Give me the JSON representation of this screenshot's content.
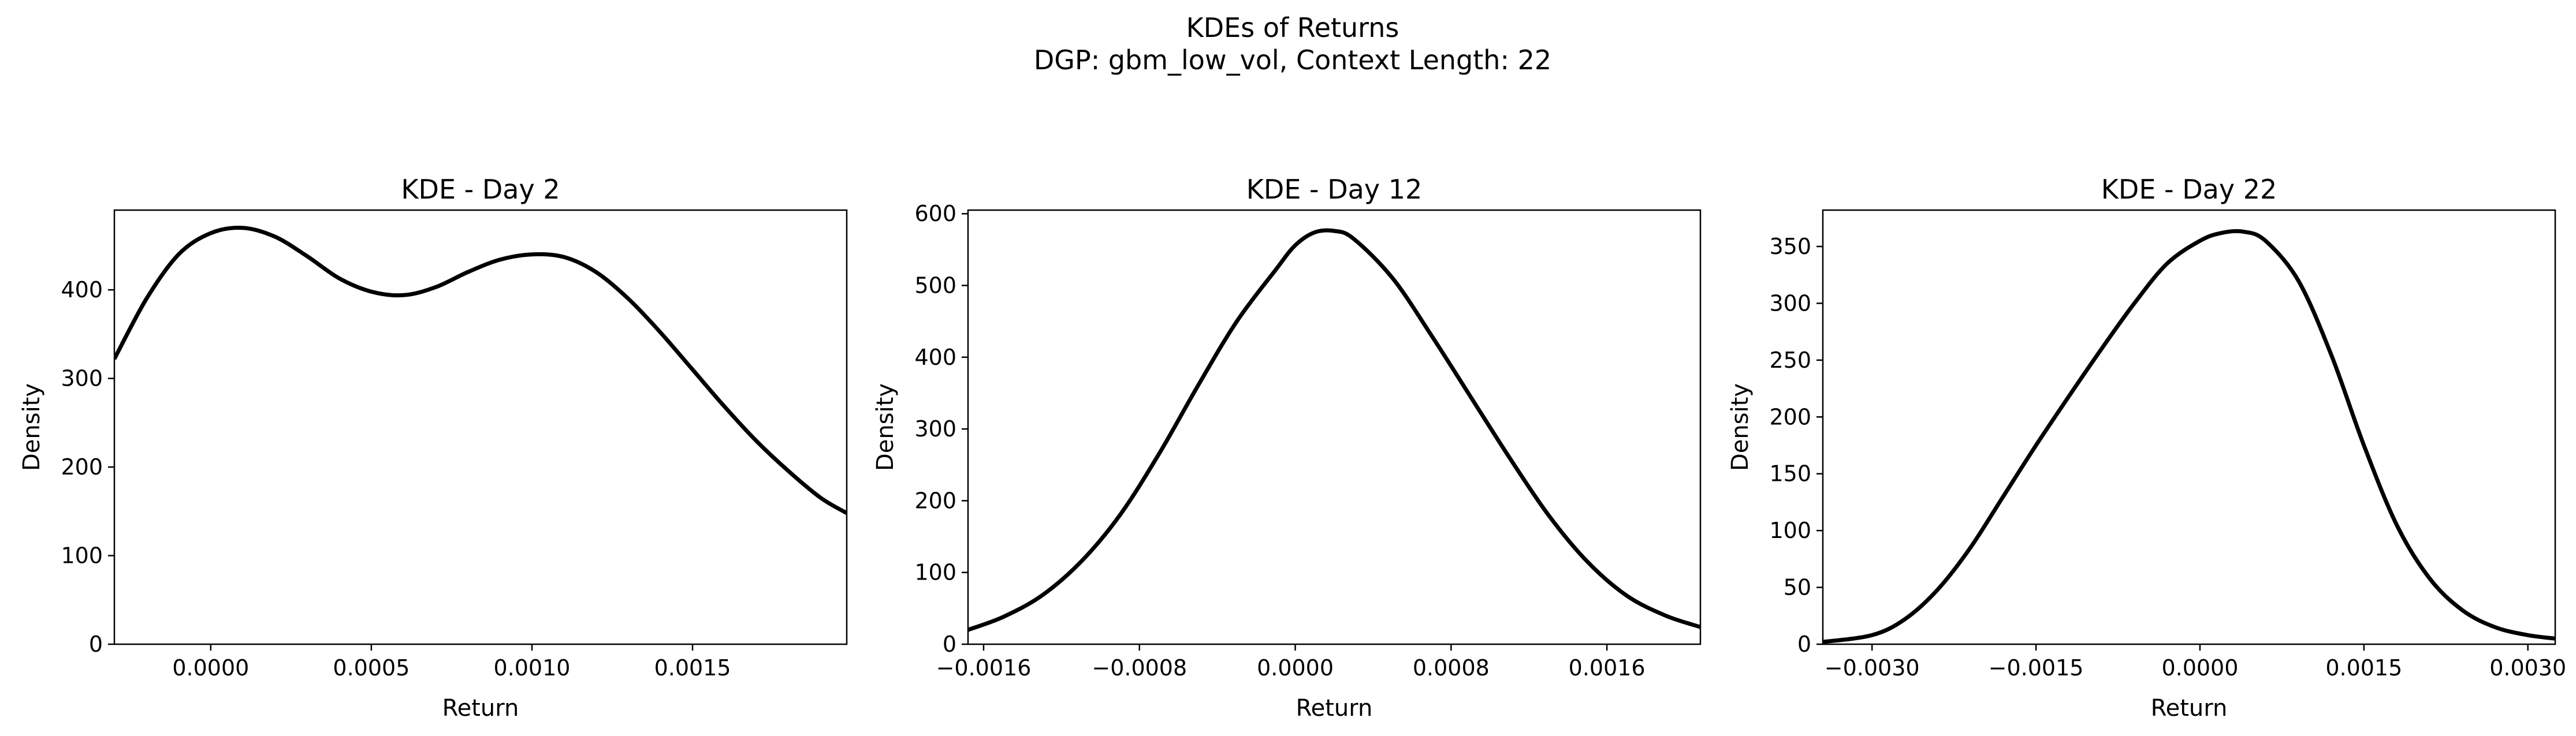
{
  "figure": {
    "title_line1": "KDEs of Returns",
    "title_line2": "DGP: gbm_low_vol, Context Length: 22"
  },
  "chart_data": [
    {
      "type": "line",
      "title": "KDE - Day 2",
      "xlabel": "Return",
      "ylabel": "Density",
      "xlim": [
        -0.0003,
        0.00198
      ],
      "ylim": [
        0,
        490
      ],
      "xticks": [
        0.0,
        0.0005,
        0.001,
        0.0015
      ],
      "xtick_labels": [
        "0.0000",
        "0.0005",
        "0.0010",
        "0.0015"
      ],
      "yticks": [
        0,
        100,
        200,
        300,
        400
      ],
      "ytick_labels": [
        "0",
        "100",
        "200",
        "300",
        "400"
      ],
      "series": [
        {
          "color": "#000000",
          "x": [
            -0.0003,
            -0.0002,
            -0.0001,
            0.0,
            0.0001,
            0.0002,
            0.0003,
            0.0004,
            0.0005,
            0.0006,
            0.0007,
            0.0008,
            0.0009,
            0.001,
            0.0011,
            0.0012,
            0.0013,
            0.0014,
            0.0015,
            0.0016,
            0.0017,
            0.0018,
            0.0019,
            0.00198
          ],
          "y": [
            322,
            390,
            440,
            464,
            470,
            460,
            438,
            413,
            398,
            394,
            403,
            420,
            434,
            440,
            437,
            420,
            390,
            352,
            310,
            268,
            229,
            195,
            165,
            148
          ]
        }
      ]
    },
    {
      "type": "line",
      "title": "KDE - Day 12",
      "xlabel": "Return",
      "ylabel": "Density",
      "xlim": [
        -0.00168,
        0.00208
      ],
      "ylim": [
        0,
        605
      ],
      "xticks": [
        -0.0016,
        -0.0008,
        0.0,
        0.0008,
        0.0016
      ],
      "xtick_labels": [
        "−0.0016",
        "−0.0008",
        "0.0000",
        "0.0008",
        "0.0016"
      ],
      "yticks": [
        0,
        100,
        200,
        300,
        400,
        500,
        600
      ],
      "ytick_labels": [
        "0",
        "100",
        "200",
        "300",
        "400",
        "500",
        "600"
      ],
      "series": [
        {
          "color": "#000000",
          "x": [
            -0.00168,
            -0.0015,
            -0.0013,
            -0.0011,
            -0.0009,
            -0.0007,
            -0.0005,
            -0.0003,
            -0.0001,
            0.0,
            0.0001,
            0.0002,
            0.0003,
            0.0005,
            0.0007,
            0.0009,
            0.0011,
            0.0013,
            0.0015,
            0.0017,
            0.0019,
            0.00208
          ],
          "y": [
            20,
            38,
            68,
            115,
            180,
            265,
            360,
            450,
            522,
            556,
            574,
            576,
            565,
            510,
            430,
            345,
            260,
            180,
            115,
            68,
            40,
            24
          ]
        }
      ]
    },
    {
      "type": "line",
      "title": "KDE - Day 22",
      "xlabel": "Return",
      "ylabel": "Density",
      "xlim": [
        -0.00345,
        0.00325
      ],
      "ylim": [
        0,
        382
      ],
      "xticks": [
        -0.003,
        -0.0015,
        0.0,
        0.0015,
        0.003
      ],
      "xtick_labels": [
        "−0.0030",
        "−0.0015",
        "0.0000",
        "0.0015",
        "0.0030"
      ],
      "yticks": [
        0,
        50,
        100,
        150,
        200,
        250,
        300,
        350
      ],
      "ytick_labels": [
        "0",
        "50",
        "100",
        "150",
        "200",
        "250",
        "300",
        "350"
      ],
      "series": [
        {
          "color": "#000000",
          "x": [
            -0.00345,
            -0.003,
            -0.0027,
            -0.0024,
            -0.0021,
            -0.0018,
            -0.0015,
            -0.0012,
            -0.0009,
            -0.0006,
            -0.0003,
            0.0,
            0.0002,
            0.0004,
            0.0006,
            0.0009,
            0.0012,
            0.0015,
            0.0018,
            0.0021,
            0.0024,
            0.0027,
            0.003,
            0.00325
          ],
          "y": [
            2,
            8,
            22,
            48,
            85,
            130,
            175,
            218,
            260,
            300,
            335,
            355,
            362,
            363,
            355,
            320,
            255,
            175,
            105,
            58,
            30,
            15,
            8,
            5
          ]
        }
      ]
    }
  ]
}
